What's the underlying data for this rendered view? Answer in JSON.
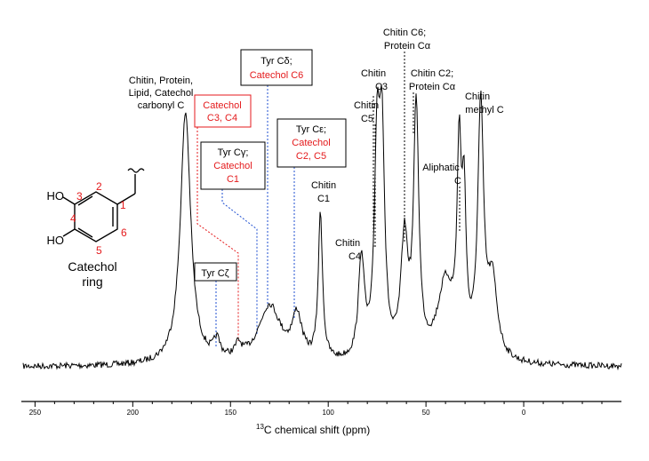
{
  "chart_data": {
    "type": "line",
    "title": "",
    "xlabel_sup": "13",
    "xlabel": "C chemical shift (ppm)",
    "ylabel": "",
    "xlim": [
      257,
      -50
    ],
    "x_reversed": true,
    "x_ticks": [
      250,
      200,
      150,
      100,
      50,
      0
    ],
    "grid": false,
    "series": [
      {
        "peaks": [
          {
            "x": 173,
            "height": 1.0,
            "width": 3.2
          },
          {
            "x": 157,
            "height": 0.07,
            "width": 2.0
          },
          {
            "x": 146,
            "height": 0.05,
            "width": 2.0
          },
          {
            "x": 130,
            "height": 0.23,
            "width": 7.0
          },
          {
            "x": 116,
            "height": 0.17,
            "width": 3.0
          },
          {
            "x": 104,
            "height": 0.58,
            "width": 1.3
          },
          {
            "x": 83,
            "height": 0.4,
            "width": 1.8
          },
          {
            "x": 75,
            "height": 0.8,
            "width": 1.6
          },
          {
            "x": 72.5,
            "height": 0.83,
            "width": 1.6
          },
          {
            "x": 61,
            "height": 0.46,
            "width": 2.2
          },
          {
            "x": 55,
            "height": 0.98,
            "width": 1.6
          },
          {
            "x": 40,
            "height": 0.3,
            "width": 5.0
          },
          {
            "x": 33,
            "height": 0.75,
            "width": 1.3
          },
          {
            "x": 30.5,
            "height": 0.55,
            "width": 1.2
          },
          {
            "x": 22,
            "height": 0.98,
            "width": 1.8
          },
          {
            "x": 16,
            "height": 0.3,
            "width": 3.0
          }
        ]
      }
    ],
    "annotations": [
      {
        "lines": [
          "Chitin, Protein,",
          "Lipid, Catechol",
          "carbonyl C"
        ],
        "color": "#000000",
        "boxed": false
      },
      {
        "lines": [
          "Catechol",
          "C3, C4"
        ],
        "color": "#e41a1c",
        "boxed": true
      },
      {
        "lines": [
          "Tyr Cγ;"
        ],
        "color": "#000000",
        "lines_red": [
          "Catechol",
          "C1"
        ],
        "boxed": true
      },
      {
        "lines": [
          "Tyr Cδ;"
        ],
        "color": "#000000",
        "lines_red": [
          "Catechol C6"
        ],
        "boxed": true
      },
      {
        "lines": [
          "Tyr Cε;"
        ],
        "color": "#000000",
        "lines_red": [
          "Catechol",
          "C2, C5"
        ],
        "boxed": true
      },
      {
        "lines": [
          "Tyr Cζ"
        ],
        "color": "#000000",
        "boxed": true
      },
      {
        "lines": [
          "Chitin",
          "C1"
        ],
        "color": "#000000",
        "boxed": false
      },
      {
        "lines": [
          "Chitin",
          "C4"
        ],
        "color": "#000000",
        "boxed": false
      },
      {
        "lines": [
          "Chitin",
          "C5"
        ],
        "color": "#000000",
        "boxed": false
      },
      {
        "lines": [
          "Chitin",
          "C3"
        ],
        "color": "#000000",
        "boxed": false
      },
      {
        "lines": [
          "Chitin C6;",
          "Protein Cα"
        ],
        "color": "#000000",
        "boxed": false
      },
      {
        "lines": [
          "Chitin C2;",
          "Protein Cα"
        ],
        "color": "#000000",
        "boxed": false
      },
      {
        "lines": [
          "Aliphatic",
          "C"
        ],
        "color": "#000000",
        "boxed": false
      },
      {
        "lines": [
          "Chitin",
          "methyl C"
        ],
        "color": "#000000",
        "boxed": false
      }
    ]
  },
  "structure": {
    "atoms": [
      "HO",
      "HO"
    ],
    "numbers": [
      "1",
      "2",
      "3",
      "4",
      "5",
      "6"
    ],
    "title_lines": [
      "Catechol",
      "ring"
    ]
  },
  "colors": {
    "line": "#000000",
    "red": "#e41a1c",
    "guide": "#1f4fd1"
  }
}
